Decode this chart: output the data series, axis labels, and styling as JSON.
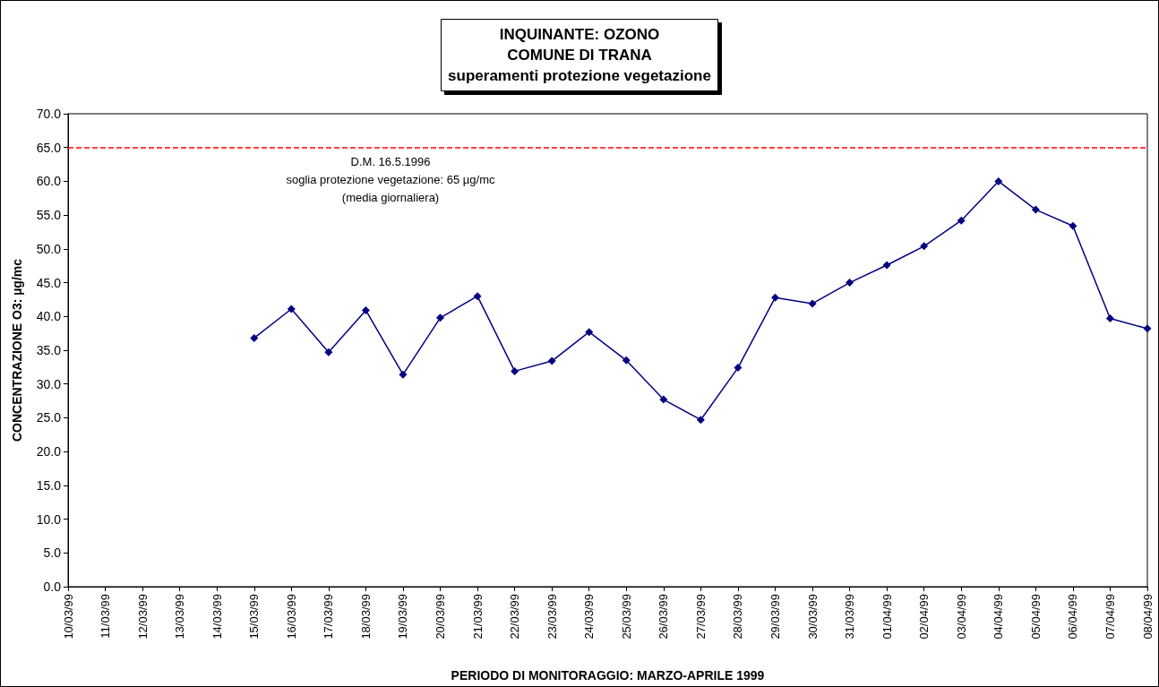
{
  "chart_data": {
    "type": "line",
    "title": "INQUINANTE: OZONO\nCOMUNE DI TRANA\nsuperamenti protezione vegetazione",
    "xlabel": "PERIODO DI MONITORAGGIO: MARZO-APRILE 1999",
    "ylabel": "CONCENTRAZIONE O3: µg/mc",
    "categories": [
      "10/03/99",
      "11/03/99",
      "12/03/99",
      "13/03/99",
      "14/03/99",
      "15/03/99",
      "16/03/99",
      "17/03/99",
      "18/03/99",
      "19/03/99",
      "20/03/99",
      "21/03/99",
      "22/03/99",
      "23/03/99",
      "24/03/99",
      "25/03/99",
      "26/03/99",
      "27/03/99",
      "28/03/99",
      "29/03/99",
      "30/03/99",
      "31/03/99",
      "01/04/99",
      "02/04/99",
      "03/04/99",
      "04/04/99",
      "05/04/99",
      "06/04/99",
      "07/04/99",
      "08/04/99"
    ],
    "series": [
      {
        "color": "#000080",
        "values": [
          null,
          null,
          null,
          null,
          null,
          36.8,
          41.1,
          34.7,
          40.9,
          31.4,
          39.8,
          43.0,
          31.9,
          33.4,
          37.7,
          33.5,
          27.7,
          24.7,
          32.4,
          42.8,
          41.9,
          45.0,
          47.6,
          50.4,
          54.2,
          60.0,
          55.8,
          53.4,
          39.7,
          38.2
        ]
      }
    ],
    "ylim": [
      0,
      70
    ],
    "yticks": [
      {
        "value": 0,
        "label": "0.0"
      },
      {
        "value": 5,
        "label": "5.0"
      },
      {
        "value": 10,
        "label": "10.0"
      },
      {
        "value": 15,
        "label": "15.0"
      },
      {
        "value": 20,
        "label": "20.0"
      },
      {
        "value": 25,
        "label": "25.0"
      },
      {
        "value": 30,
        "label": "30.0"
      },
      {
        "value": 35,
        "label": "35.0"
      },
      {
        "value": 40,
        "label": "40.0"
      },
      {
        "value": 45,
        "label": "45.0"
      },
      {
        "value": 50,
        "label": "50.0"
      },
      {
        "value": 55,
        "label": "55.0"
      },
      {
        "value": 60,
        "label": "60.0"
      },
      {
        "value": 65,
        "label": "65.0"
      },
      {
        "value": 70,
        "label": "70.0"
      }
    ],
    "ref_lines": [
      {
        "axis": "y",
        "value": 65,
        "label": "D.M. 16.5.1996\nsoglia protezione vegetazione: 65 µg/mc\n(media giornaliera)",
        "color": "#ff0000",
        "line_style": "dashed"
      }
    ],
    "marker": "diamond",
    "line_style": "solid",
    "grid": false
  }
}
